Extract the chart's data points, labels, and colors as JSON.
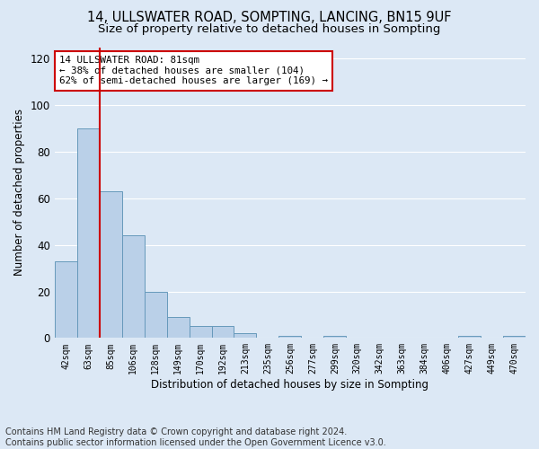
{
  "title": "14, ULLSWATER ROAD, SOMPTING, LANCING, BN15 9UF",
  "subtitle": "Size of property relative to detached houses in Sompting",
  "xlabel": "Distribution of detached houses by size in Sompting",
  "ylabel": "Number of detached properties",
  "bar_labels": [
    "42sqm",
    "63sqm",
    "85sqm",
    "106sqm",
    "128sqm",
    "149sqm",
    "170sqm",
    "192sqm",
    "213sqm",
    "235sqm",
    "256sqm",
    "277sqm",
    "299sqm",
    "320sqm",
    "342sqm",
    "363sqm",
    "384sqm",
    "406sqm",
    "427sqm",
    "449sqm",
    "470sqm"
  ],
  "bar_values": [
    33,
    90,
    63,
    44,
    20,
    9,
    5,
    5,
    2,
    0,
    1,
    0,
    1,
    0,
    0,
    0,
    0,
    0,
    1,
    0,
    1
  ],
  "bar_color": "#bad0e8",
  "bar_edge_color": "#6699bb",
  "ylim": [
    0,
    125
  ],
  "yticks": [
    0,
    20,
    40,
    60,
    80,
    100,
    120
  ],
  "vline_x": 1.5,
  "vline_color": "#cc0000",
  "annotation_text": "14 ULLSWATER ROAD: 81sqm\n← 38% of detached houses are smaller (104)\n62% of semi-detached houses are larger (169) →",
  "annotation_box_color": "#ffffff",
  "annotation_box_edgecolor": "#cc0000",
  "footer_line1": "Contains HM Land Registry data © Crown copyright and database right 2024.",
  "footer_line2": "Contains public sector information licensed under the Open Government Licence v3.0.",
  "background_color": "#dce8f5",
  "plot_background": "#dce8f5",
  "grid_color": "#ffffff",
  "title_fontsize": 10.5,
  "subtitle_fontsize": 9.5,
  "footer_fontsize": 7
}
